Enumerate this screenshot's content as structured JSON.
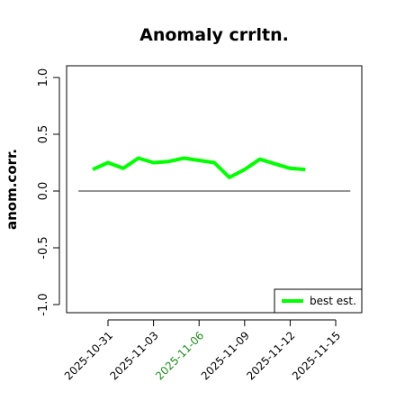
{
  "chart_data": {
    "type": "line",
    "title": "Anomaly crrltn.",
    "ylabel": "anom.corr.",
    "xlabel": "",
    "ylim": [
      -1.0,
      1.0
    ],
    "yticks": [
      "-1.0",
      "-0.5",
      "0.0",
      "0.5",
      "1.0"
    ],
    "xticks": [
      "2025-10-31",
      "2025-11-03",
      "2025-11-06",
      "2025-11-09",
      "2025-11-12",
      "2025-11-15"
    ],
    "highlight_xtick": "2025-11-06",
    "reference_line": 0.0,
    "grid": false,
    "legend_position": "bottom-right",
    "colors": {
      "series": "#00ff00",
      "highlight_tick": "#228b22",
      "reference": "#555555"
    },
    "series": [
      {
        "name": "best est.",
        "x": [
          "2025-10-30",
          "2025-10-31",
          "2025-11-01",
          "2025-11-02",
          "2025-11-03",
          "2025-11-04",
          "2025-11-05",
          "2025-11-06",
          "2025-11-07",
          "2025-11-08",
          "2025-11-09",
          "2025-11-10",
          "2025-11-11",
          "2025-11-12",
          "2025-11-13"
        ],
        "values": [
          0.19,
          0.25,
          0.2,
          0.29,
          0.25,
          0.26,
          0.29,
          0.27,
          0.25,
          0.12,
          0.19,
          0.28,
          0.24,
          0.2,
          0.19
        ]
      }
    ]
  }
}
